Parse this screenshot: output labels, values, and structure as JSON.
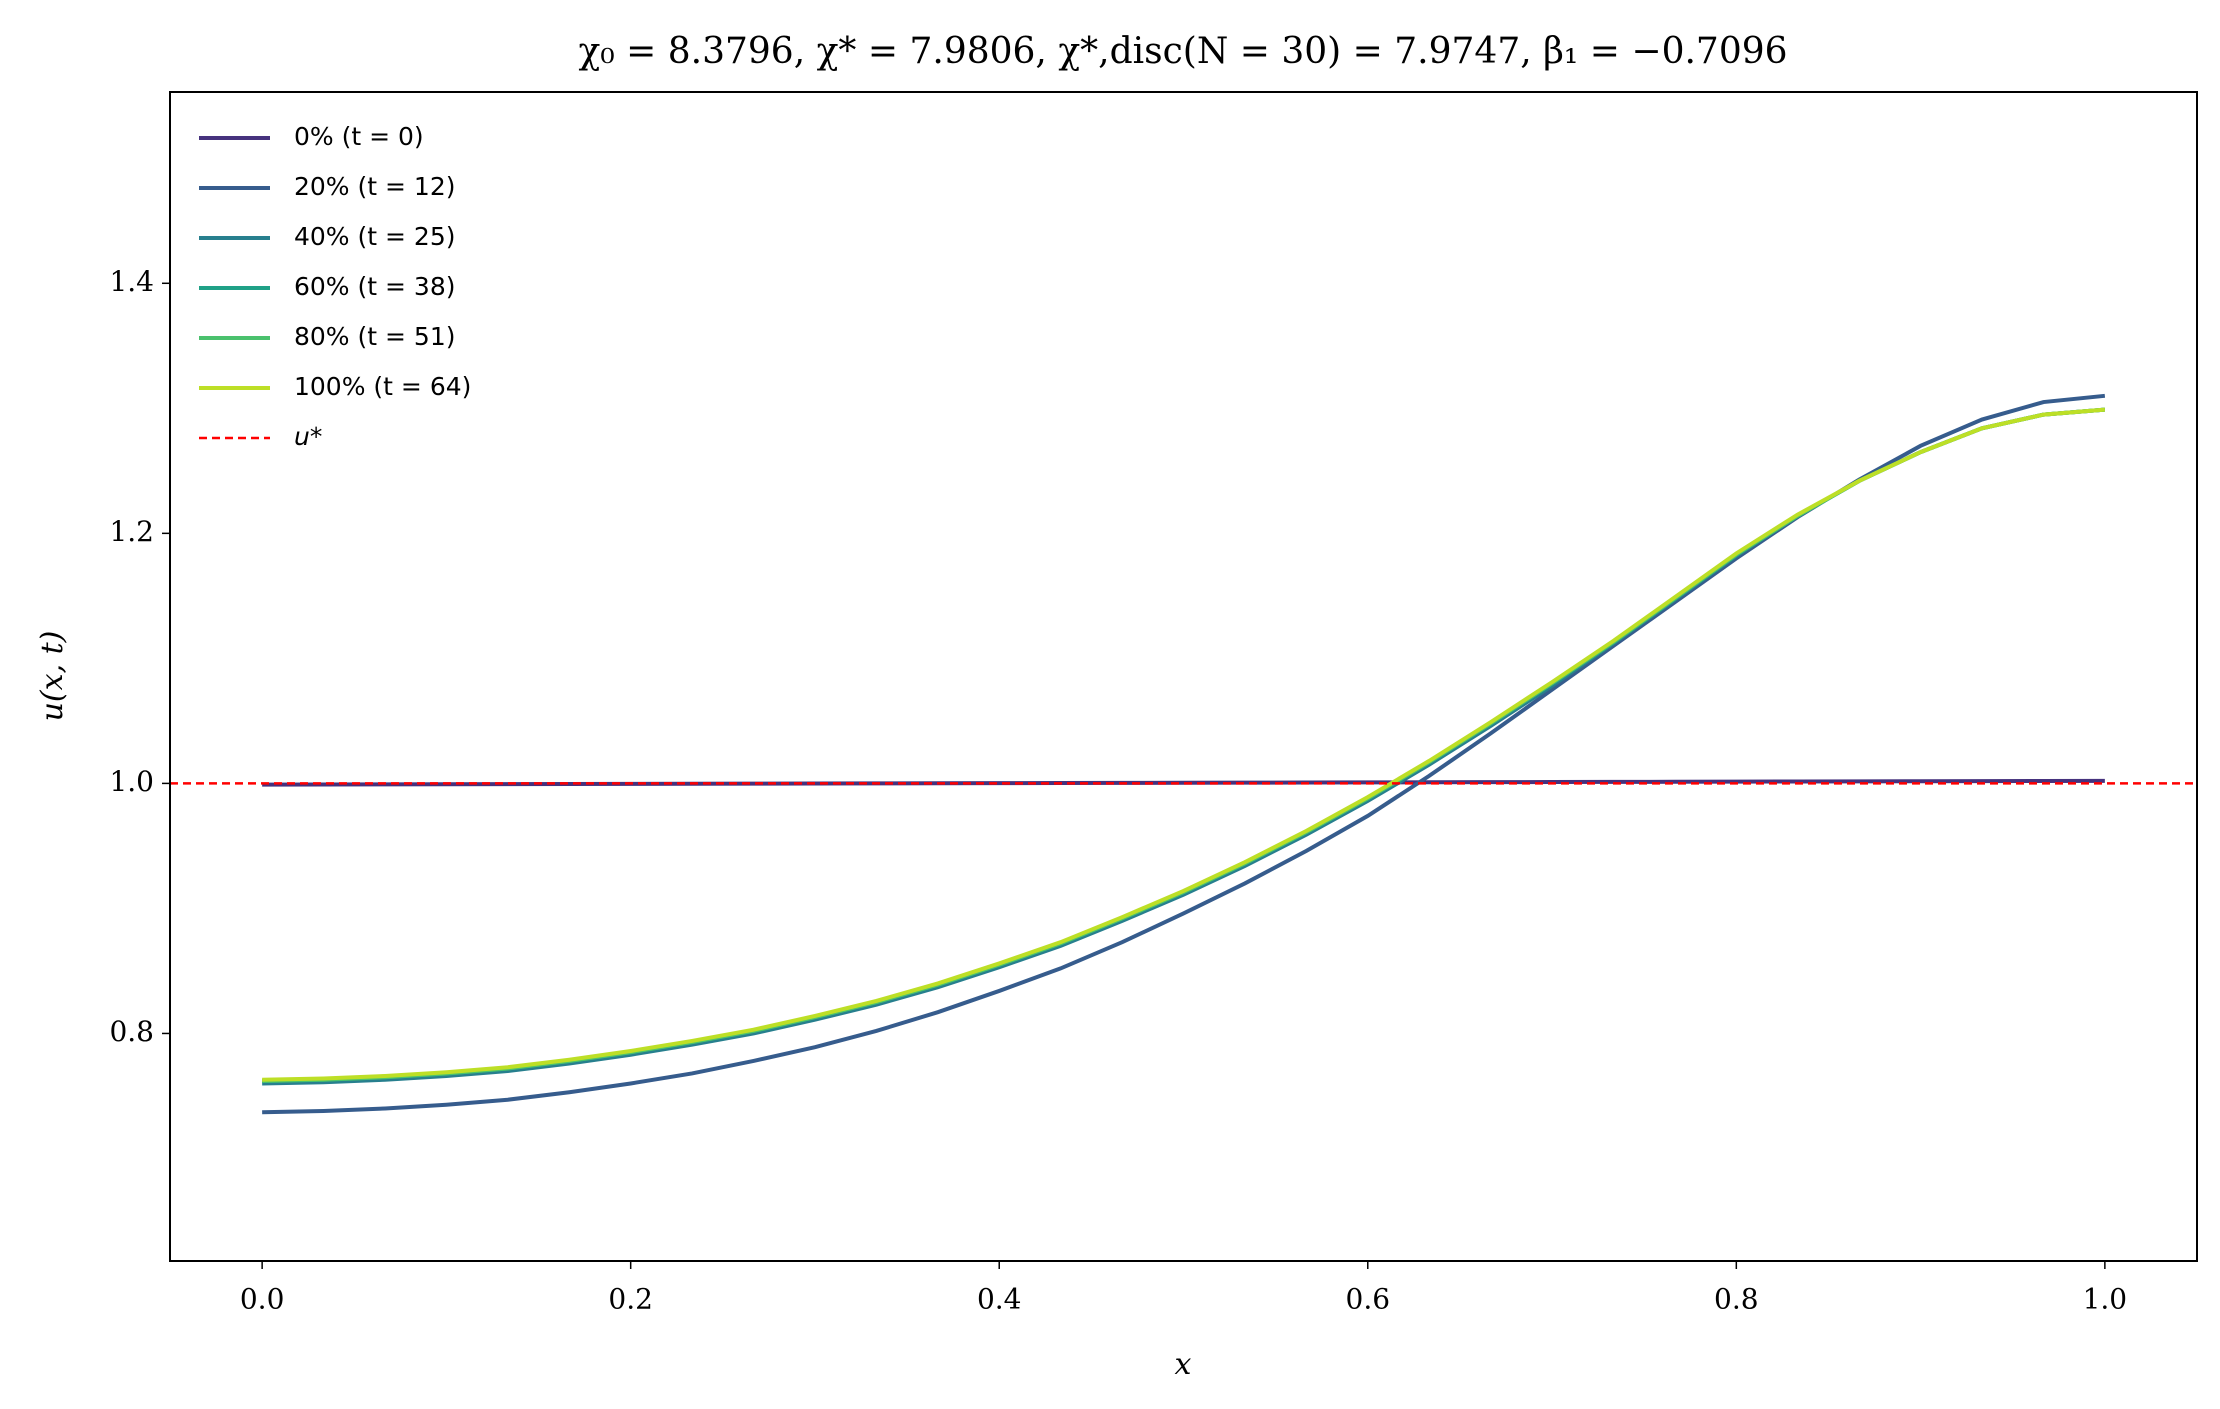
{
  "chart_data": {
    "type": "line",
    "title": "χ₀ = 8.3796,  χ* = 7.9806,  χ*,disc(N = 30) = 7.9747,  β₁ = −0.7096",
    "x_label": "x",
    "y_label": "u(x, t)",
    "x": [
      0,
      0.0333,
      0.0667,
      0.1,
      0.1333,
      0.1667,
      0.2,
      0.2333,
      0.2667,
      0.3,
      0.3333,
      0.3667,
      0.4,
      0.4333,
      0.4667,
      0.5,
      0.5333,
      0.5667,
      0.6,
      0.6333,
      0.6667,
      0.7,
      0.7333,
      0.7667,
      0.8,
      0.8333,
      0.8667,
      0.9,
      0.9333,
      0.9667,
      1
    ],
    "series": [
      {
        "name": "0% (t = 0)",
        "color": "#46327e",
        "values": [
          0.999,
          0.9991,
          0.9992,
          0.9993,
          0.9994,
          0.9995,
          0.9996,
          0.9997,
          0.9998,
          0.9999,
          1.0,
          1.0001,
          1.0002,
          1.0003,
          1.0004,
          1.0005,
          1.0006,
          1.0007,
          1.0008,
          1.0009,
          1.001,
          1.0011,
          1.0012,
          1.0013,
          1.0014,
          1.0015,
          1.0016,
          1.0017,
          1.0018,
          1.0019,
          1.002
        ]
      },
      {
        "name": "20% (t = 12)",
        "color": "#365c8d",
        "values": [
          0.737,
          0.738,
          0.74,
          0.743,
          0.747,
          0.753,
          0.76,
          0.768,
          0.778,
          0.789,
          0.802,
          0.817,
          0.834,
          0.852,
          0.873,
          0.896,
          0.92,
          0.946,
          0.974,
          1.006,
          1.04,
          1.075,
          1.11,
          1.145,
          1.18,
          1.213,
          1.243,
          1.27,
          1.291,
          1.305,
          1.31
        ]
      },
      {
        "name": "40% (t = 25)",
        "color": "#277f8e",
        "values": [
          0.76,
          0.761,
          0.763,
          0.766,
          0.77,
          0.776,
          0.783,
          0.791,
          0.8,
          0.811,
          0.823,
          0.837,
          0.853,
          0.87,
          0.89,
          0.911,
          0.934,
          0.959,
          0.986,
          1.015,
          1.046,
          1.078,
          1.112,
          1.147,
          1.182,
          1.214,
          1.242,
          1.265,
          1.284,
          1.295,
          1.299
        ]
      },
      {
        "name": "60% (t = 38)",
        "color": "#1fa187",
        "values": [
          0.762,
          0.763,
          0.765,
          0.768,
          0.772,
          0.778,
          0.785,
          0.793,
          0.802,
          0.813,
          0.825,
          0.839,
          0.855,
          0.872,
          0.892,
          0.913,
          0.936,
          0.961,
          0.988,
          1.017,
          1.048,
          1.08,
          1.113,
          1.148,
          1.183,
          1.214,
          1.242,
          1.265,
          1.284,
          1.295,
          1.299
        ]
      },
      {
        "name": "80% (t = 51)",
        "color": "#4ac16d",
        "values": [
          0.762,
          0.763,
          0.765,
          0.768,
          0.772,
          0.778,
          0.785,
          0.793,
          0.802,
          0.813,
          0.825,
          0.839,
          0.855,
          0.872,
          0.892,
          0.913,
          0.936,
          0.961,
          0.988,
          1.017,
          1.048,
          1.08,
          1.113,
          1.148,
          1.183,
          1.214,
          1.242,
          1.265,
          1.284,
          1.295,
          1.299
        ]
      },
      {
        "name": "100% (t = 64)",
        "color": "#bddf26",
        "values": [
          0.763,
          0.764,
          0.766,
          0.769,
          0.773,
          0.779,
          0.786,
          0.794,
          0.803,
          0.814,
          0.826,
          0.84,
          0.856,
          0.873,
          0.893,
          0.914,
          0.937,
          0.962,
          0.989,
          1.018,
          1.049,
          1.081,
          1.114,
          1.149,
          1.184,
          1.215,
          1.242,
          1.265,
          1.284,
          1.295,
          1.299
        ]
      }
    ],
    "reference_line": {
      "name": "u*",
      "value": 1,
      "color": "#ff0000",
      "style": "dashed"
    },
    "xlim": [
      -0.05,
      1.05
    ],
    "xticks": [
      {
        "value": 0,
        "label": "0.0"
      },
      0.2,
      0.4,
      0.6,
      0.8,
      {
        "value": 1,
        "label": "1.0"
      }
    ],
    "ylim": [
      0.618,
      1.553
    ],
    "yticks": [
      0.8,
      {
        "value": 1,
        "label": "1.0"
      },
      1.2,
      1.4
    ],
    "grid": false,
    "legend": "upper left"
  }
}
